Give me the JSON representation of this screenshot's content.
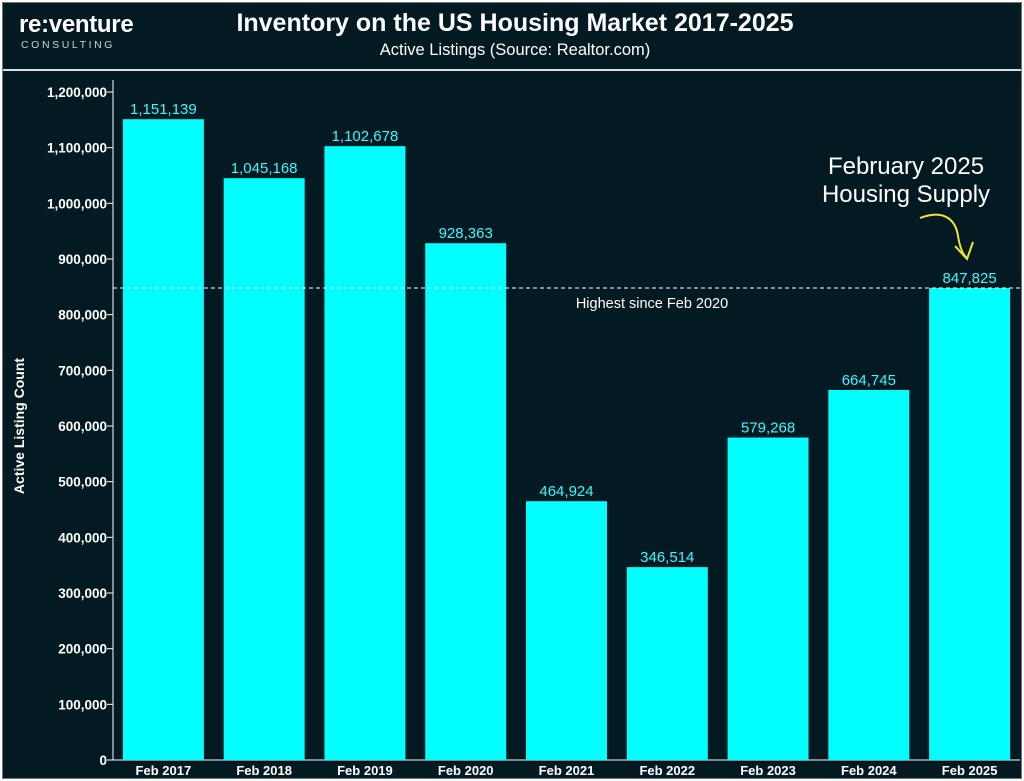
{
  "brand": {
    "name": "re:venture",
    "sub": "CONSULTING"
  },
  "chart_data": {
    "type": "bar",
    "title": "Inventory on the US Housing Market 2017-2025",
    "subtitle": "Active Listings (Source: Realtor.com)",
    "ylabel": "Active Listing Count",
    "xlabel": "",
    "categories": [
      "Feb 2017",
      "Feb 2018",
      "Feb 2019",
      "Feb 2020",
      "Feb 2021",
      "Feb 2022",
      "Feb 2023",
      "Feb 2024",
      "Feb 2025"
    ],
    "values": [
      1151139,
      1045168,
      1102678,
      928363,
      464924,
      346514,
      579268,
      664745,
      847825
    ],
    "value_labels": [
      "1,151,139",
      "1,045,168",
      "1,102,678",
      "928,363",
      "464,924",
      "346,514",
      "579,268",
      "664,745",
      "847,825"
    ],
    "ylim": [
      0,
      1200000
    ],
    "yticks": [
      0,
      100000,
      200000,
      300000,
      400000,
      500000,
      600000,
      700000,
      800000,
      900000,
      1000000,
      1100000,
      1200000
    ],
    "ytick_labels": [
      "0",
      "100,000",
      "200,000",
      "300,000",
      "400,000",
      "500,000",
      "600,000",
      "700,000",
      "800,000",
      "900,000",
      "1,000,000",
      "1,100,000",
      "1,200,000"
    ],
    "grid": false,
    "reference_line": {
      "value": 847825,
      "label": "Highest since Feb 2020",
      "style": "dashed"
    },
    "annotation": {
      "lines": [
        "February 2025",
        "Housing Supply"
      ],
      "target": "Feb 2025"
    },
    "colors": {
      "bar": "#00ffff",
      "background": "#041a22",
      "value_label": "#3ff6ff",
      "text": "#ffffff",
      "arrow": "#f2e33a"
    }
  }
}
